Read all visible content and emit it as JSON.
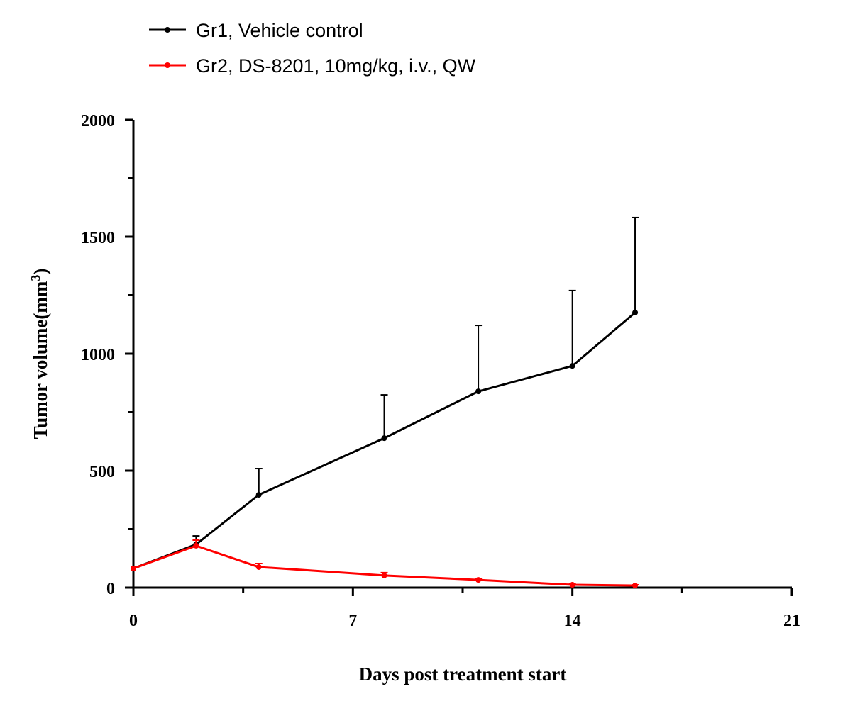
{
  "chart_data": {
    "type": "line",
    "title": "",
    "xlabel": "Days post treatment start",
    "ylabel": "Tumor volume(mm",
    "ylabel_superscript": "3",
    "ylabel_suffix": ")",
    "xlim": [
      0,
      21
    ],
    "ylim": [
      0,
      2000
    ],
    "xticks": [
      0,
      7,
      14,
      21
    ],
    "xtick_labels": [
      "0",
      "7",
      "14",
      "21"
    ],
    "x_minor_step": 3.5,
    "yticks": [
      0,
      500,
      1000,
      1500,
      2000
    ],
    "ytick_labels": [
      "0",
      "500",
      "1000",
      "1500",
      "2000"
    ],
    "y_minor_step": 250,
    "grid": false,
    "legend_placement": "top-left",
    "error_bars": "upper SEM",
    "series": [
      {
        "name": "Gr1, Vehicle control",
        "color": "#000000",
        "x": [
          0,
          2,
          4,
          8,
          11,
          14,
          16
        ],
        "y": [
          82,
          185,
          397,
          639,
          839,
          948,
          1176
        ],
        "error": [
          0,
          36,
          112,
          185,
          282,
          322,
          406
        ]
      },
      {
        "name": "Gr2, DS-8201, 10mg/kg, i.v., QW",
        "color": "#ff0000",
        "x": [
          0,
          2,
          4,
          8,
          11,
          14,
          16
        ],
        "y": [
          82,
          179,
          88,
          52,
          33,
          12,
          9
        ],
        "error": [
          0,
          24,
          15,
          12,
          5,
          4,
          3
        ]
      }
    ]
  }
}
